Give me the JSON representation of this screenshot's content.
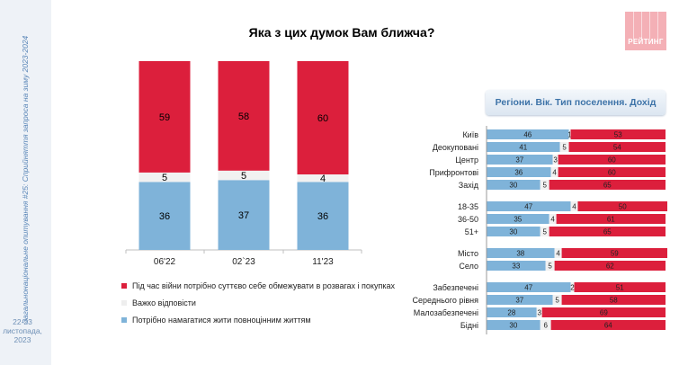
{
  "sidebar": {
    "vertical_text": "Загальнонаціональне опитування #25: Сприйняття запроса на зиму 2023-2024",
    "date_lines": [
      "22-23",
      "листопада,",
      "2023"
    ]
  },
  "title": "Яка з цих думок Вам ближча?",
  "logo_text": "РЕЙТИНГ",
  "colors": {
    "red": "#dc1f3c",
    "white": "#f1f1f1",
    "blue": "#7fb3d9"
  },
  "legend": [
    {
      "label": "Під час війни потрібно суттєво себе обмежувати в розвагах і покупках",
      "color": "#dc1f3c"
    },
    {
      "label": "Важко відповісти",
      "color": "#eeeeee"
    },
    {
      "label": "Потрібно намагатися жити повноцінним життям",
      "color": "#7fb3d9"
    }
  ],
  "right_title": "Регіони. Вік. Тип поселення. Дохід",
  "chart_data": [
    {
      "type": "bar",
      "stacked": true,
      "title": "Яка з цих думок Вам ближча?",
      "categories": [
        "06'22",
        "02`23",
        "11'23"
      ],
      "series": [
        {
          "name": "Потрібно намагатися жити повноцінним життям",
          "values": [
            36,
            37,
            36
          ]
        },
        {
          "name": "Важко відповісти",
          "values": [
            5,
            5,
            4
          ]
        },
        {
          "name": "Під час війни потрібно суттєво себе обмежувати в розвагах і покупках",
          "values": [
            59,
            58,
            60
          ]
        }
      ]
    },
    {
      "type": "bar",
      "orientation": "horizontal",
      "stacked": true,
      "title": "Регіони. Вік. Тип поселення. Дохід",
      "groups": [
        {
          "rows": [
            {
              "label": "Київ",
              "values": [
                46,
                1,
                53
              ]
            },
            {
              "label": "Деокуповані",
              "values": [
                41,
                5,
                54
              ]
            },
            {
              "label": "Центр",
              "values": [
                37,
                3,
                60
              ]
            },
            {
              "label": "Прифронтові",
              "values": [
                36,
                4,
                60
              ]
            },
            {
              "label": "Захід",
              "values": [
                30,
                5,
                65
              ]
            }
          ]
        },
        {
          "rows": [
            {
              "label": "18-35",
              "values": [
                47,
                4,
                50
              ]
            },
            {
              "label": "36-50",
              "values": [
                35,
                4,
                61
              ]
            },
            {
              "label": "51+",
              "values": [
                30,
                5,
                65
              ]
            }
          ]
        },
        {
          "rows": [
            {
              "label": "Місто",
              "values": [
                38,
                4,
                59
              ]
            },
            {
              "label": "Село",
              "values": [
                33,
                5,
                62
              ]
            }
          ]
        },
        {
          "rows": [
            {
              "label": "Забезпечені",
              "values": [
                47,
                2,
                51
              ]
            },
            {
              "label": "Середнього рівня",
              "values": [
                37,
                5,
                58
              ]
            },
            {
              "label": "Малозабезпечені",
              "values": [
                28,
                3,
                69
              ]
            },
            {
              "label": "Бідні",
              "values": [
                30,
                6,
                64
              ]
            }
          ]
        }
      ]
    }
  ]
}
